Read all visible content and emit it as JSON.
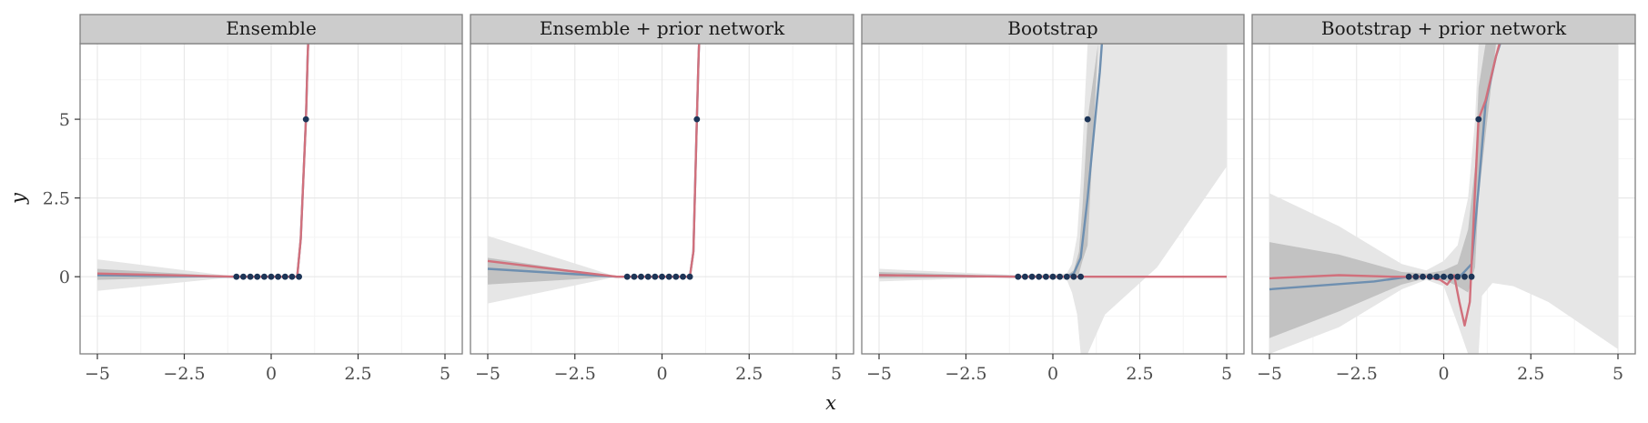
{
  "chart_data": {
    "type": "line",
    "xlabel": "x",
    "ylabel": "y",
    "xlim": [
      -5,
      5
    ],
    "ylim": [
      -2.45,
      7.4
    ],
    "x_ticks": [
      -5,
      -2.5,
      0,
      2.5,
      5
    ],
    "x_tick_labels": [
      "−5",
      "−2.5",
      "0",
      "2.5",
      "5"
    ],
    "y_ticks": [
      0,
      2.5,
      5
    ],
    "y_tick_labels": [
      "0",
      "2.5",
      "5"
    ],
    "grid": true,
    "legend": "none",
    "colors": {
      "red_line": "#d1707c",
      "blue_line": "#6e8fb0",
      "points": "#1d3557",
      "band_outer": "#e6e6e6",
      "band_inner": "#c2c2c2",
      "strip_bg": "#cccccc",
      "panel_border": "#808080",
      "grid_major": "#e8e8e8",
      "grid_minor": "#f4f4f4"
    },
    "points": {
      "x": [
        -1.0,
        -0.8,
        -0.6,
        -0.4,
        -0.2,
        0.0,
        0.2,
        0.4,
        0.6,
        0.8,
        1.0
      ],
      "y": [
        0,
        0,
        0,
        0,
        0,
        0,
        0,
        0,
        0,
        0,
        5
      ]
    },
    "panels": [
      {
        "title": "Ensemble",
        "bands": [
          {
            "level": "outer",
            "x": [
              -5,
              -1,
              0.75,
              0.9,
              1.0,
              1.05,
              1.1
            ],
            "lower": [
              -0.45,
              0,
              0,
              2.0,
              5,
              7,
              9
            ],
            "upper": [
              0.55,
              0,
              0,
              2.0,
              5,
              7,
              9
            ]
          },
          {
            "level": "inner",
            "x": [
              -5,
              -1,
              0.75,
              0.9,
              1.0,
              1.05,
              1.1
            ],
            "lower": [
              -0.1,
              0,
              0,
              2.0,
              5,
              7,
              9
            ],
            "upper": [
              0.25,
              0,
              0,
              2.0,
              5,
              7,
              9
            ]
          }
        ],
        "series": [
          {
            "color": "blue_line",
            "x": [
              -5,
              -1,
              0.75,
              0.85,
              1.0,
              1.05,
              1.1
            ],
            "y": [
              0.05,
              0,
              0,
              1.2,
              5,
              7,
              8.5
            ]
          },
          {
            "color": "red_line",
            "x": [
              -5,
              -1,
              0.75,
              0.85,
              1.0,
              1.05,
              1.1
            ],
            "y": [
              0.1,
              0,
              0,
              1.2,
              5,
              7,
              8.5
            ]
          }
        ]
      },
      {
        "title": "Ensemble + prior network",
        "bands": [
          {
            "level": "outer",
            "x": [
              -5,
              -1.3,
              0.8,
              0.9,
              1.0,
              1.05,
              1.1
            ],
            "lower": [
              -0.85,
              0,
              0,
              2.0,
              5,
              7,
              9
            ],
            "upper": [
              1.3,
              0,
              0,
              2.0,
              5,
              7,
              9
            ]
          },
          {
            "level": "inner",
            "x": [
              -5,
              -1.3,
              0.8,
              0.9,
              1.0,
              1.05,
              1.1
            ],
            "lower": [
              -0.25,
              0,
              0,
              2.0,
              5,
              7,
              9
            ],
            "upper": [
              0.6,
              0,
              0,
              2.0,
              5,
              7,
              9
            ]
          }
        ],
        "series": [
          {
            "color": "blue_line",
            "x": [
              -5,
              -1.3,
              0.8,
              0.9,
              1.0,
              1.05,
              1.1
            ],
            "y": [
              0.25,
              0,
              0,
              0.8,
              5,
              7,
              8.5
            ]
          },
          {
            "color": "red_line",
            "x": [
              -5,
              -1.3,
              0.8,
              0.9,
              1.0,
              1.05,
              1.1
            ],
            "y": [
              0.5,
              0,
              0,
              0.8,
              5,
              7,
              8.5
            ]
          }
        ]
      },
      {
        "title": "Bootstrap",
        "bands": [
          {
            "level": "outer",
            "x": [
              -5,
              -1,
              0.4,
              0.55,
              0.7,
              0.8,
              1.0,
              1.5,
              3,
              5
            ],
            "lower": [
              -0.15,
              0,
              -0.1,
              -0.5,
              -1.2,
              -2.45,
              -2.45,
              -1.2,
              0.3,
              3.5
            ],
            "upper": [
              0.25,
              0.05,
              0.1,
              0.4,
              1.3,
              3.0,
              7.4,
              7.4,
              7.4,
              7.4
            ]
          },
          {
            "level": "inner",
            "x": [
              -5,
              -1,
              0.4,
              0.6,
              0.75,
              0.85,
              1.0,
              1.3,
              5
            ],
            "lower": [
              -0.05,
              0,
              0,
              0,
              0.1,
              0.5,
              1.0,
              7.4,
              7.4
            ],
            "upper": [
              0.15,
              0.02,
              0.05,
              0.2,
              0.8,
              2.2,
              5.0,
              7.4,
              7.4
            ]
          }
        ],
        "series": [
          {
            "color": "blue_line",
            "x": [
              -5,
              -1,
              0.4,
              0.6,
              0.8,
              1.0,
              1.2,
              1.35,
              1.45
            ],
            "y": [
              0.05,
              0,
              0,
              0.1,
              0.6,
              2.5,
              4.8,
              6.5,
              8.0
            ]
          },
          {
            "color": "red_line",
            "x": [
              -5,
              -1,
              0,
              1,
              2,
              5
            ],
            "y": [
              0.05,
              0,
              0,
              0,
              0,
              0
            ]
          }
        ]
      },
      {
        "title": "Bootstrap + prior network",
        "bands": [
          {
            "level": "outer",
            "x": [
              -5,
              -3,
              -1.2,
              -0.5,
              0,
              0.4,
              0.7,
              0.9,
              1.0,
              1.1,
              1.4,
              2,
              3,
              5
            ],
            "lower": [
              -2.45,
              -1.6,
              -0.4,
              -0.1,
              -0.3,
              -1.5,
              -2.45,
              -2.45,
              -2.45,
              -0.6,
              -0.2,
              -0.3,
              -0.8,
              -2.3
            ],
            "upper": [
              2.65,
              1.6,
              0.4,
              0.2,
              0.5,
              1.0,
              2.5,
              5.0,
              7.4,
              7.4,
              7.4,
              7.4,
              7.4,
              7.4
            ]
          },
          {
            "level": "inner",
            "x": [
              -5,
              -3,
              -1.2,
              -0.5,
              0,
              0.4,
              0.7,
              0.9,
              1.0,
              1.2,
              1.5,
              2.5,
              5
            ],
            "lower": [
              -1.95,
              -1.1,
              -0.25,
              -0.05,
              -0.1,
              -0.3,
              -0.5,
              0.3,
              2.5,
              4.5,
              7.4,
              7.4,
              7.4
            ],
            "upper": [
              1.1,
              0.7,
              0.15,
              0.1,
              0.2,
              0.4,
              1.5,
              3.5,
              6.0,
              7.4,
              7.4,
              7.4,
              7.4
            ]
          }
        ],
        "series": [
          {
            "color": "blue_line",
            "x": [
              -5,
              -2,
              -1,
              0,
              0.5,
              0.8,
              1.0,
              1.2,
              1.5,
              1.8
            ],
            "y": [
              -0.4,
              -0.15,
              0,
              0,
              0.05,
              0.4,
              2.8,
              5.5,
              7.0,
              8.0
            ]
          },
          {
            "color": "red_line",
            "x": [
              -5,
              -3,
              -1.5,
              -0.5,
              -0.1,
              0.1,
              0.3,
              0.45,
              0.6,
              0.75,
              0.9,
              1.0,
              1.2,
              1.5,
              1.65
            ],
            "y": [
              -0.05,
              0.05,
              0,
              0,
              -0.1,
              -0.25,
              0.05,
              -0.8,
              -1.55,
              -0.8,
              2.8,
              5,
              5.6,
              7.0,
              7.6
            ]
          }
        ]
      }
    ]
  }
}
